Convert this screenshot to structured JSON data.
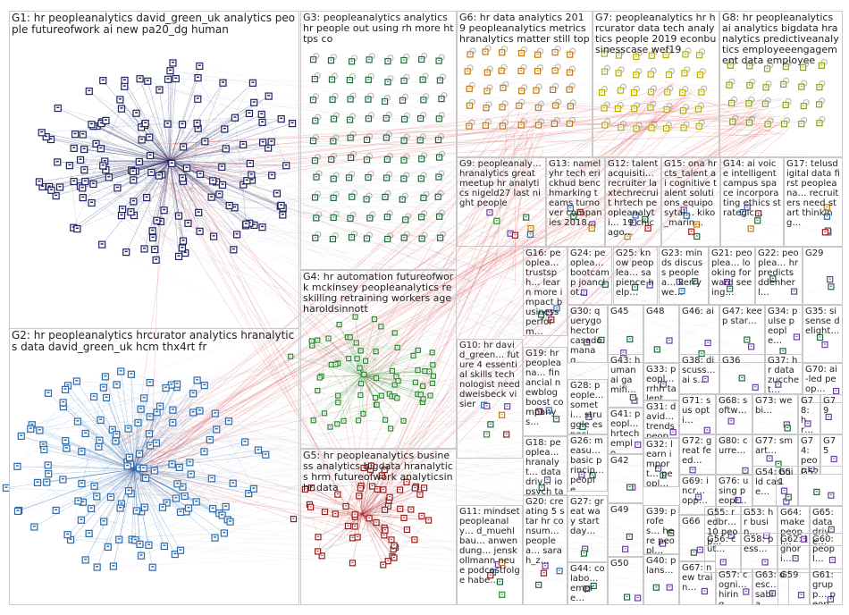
{
  "groups": [
    {
      "id": "G1",
      "label": "G1: hr peopleanalytics david_green_uk analytics people futureofwork ai new pa20_dg human",
      "color": "#1f2462"
    },
    {
      "id": "G2",
      "label": "G2: hr peopleanalytics hrcurator analytics hranalytics data david_green_uk hcm thx4rt fr",
      "color": "#2b6cb0"
    },
    {
      "id": "G3",
      "label": "G3: peopleanalytics analytics hr people out using rh more https co",
      "color": "#1e6b3a"
    },
    {
      "id": "G4",
      "label": "G4: hr automation futureofwork mckinsey peopleanalytics reskilling retraining workers age haroldsinnott",
      "color": "#2e8b2e"
    },
    {
      "id": "G5",
      "label": "G5: hr peopleanalytics business analytics bigdata hranalytics hrm futureofwork analyticsinhr data",
      "color": "#9e1b1b"
    },
    {
      "id": "G6",
      "label": "G6: hr data analytics 2019 peopleanalytics metrics hranalytics matter still top",
      "color": "#c07a12"
    },
    {
      "id": "G7",
      "label": "G7: peopleanalytics hr hrcurator data tech analytics people 2019 econbusinesscase wef19",
      "color": "#b8b000"
    },
    {
      "id": "G8",
      "label": "G8: hr peopleanalytics ai analytics bigdata hranalytics predictiveanalytics employeeengagement data employee",
      "color": "#8aa31a"
    },
    {
      "id": "G9",
      "label": "G9: peopleanaly… hranalytics great meetup hr analytics nigeld27 last night people",
      "color": "#6b3fa0"
    },
    {
      "id": "G10",
      "label": "G10: hr david_green… future 4 essential skills technologist need dweisbeck visier",
      "color": "#555555"
    },
    {
      "id": "G11",
      "label": "G11: mindset peopleanaly… d_muehlbau… anwendung… jenskollmann neue podcastfolge habe…",
      "color": "#555555"
    },
    {
      "id": "G12",
      "label": "G12: talentacquisiti… recruiter laxtechrecruit hrtech peopleanalyti… 19 chicago…",
      "color": "#555555"
    },
    {
      "id": "G13",
      "label": "G13: namelyhr tech erickhud benchmarking teams turnover companies 2018…",
      "color": "#555555"
    },
    {
      "id": "G14",
      "label": "G14: ai voice intelligent campus space incorporating ethics strategic…",
      "color": "#555555"
    },
    {
      "id": "G15",
      "label": "G15: ona hr cts_talent ai cognitive talent solutions equiposytal… kiko_marin…",
      "color": "#555555"
    },
    {
      "id": "G16",
      "label": "G16: peoplea… trustsph… learn more impact business perform…",
      "color": "#555555"
    },
    {
      "id": "G17",
      "label": "G17: telusdigital data first peopleana… recruiters need start thinking…",
      "color": "#555555"
    },
    {
      "id": "G18",
      "label": "G18: peoplea… hranalyt… datadriv… iopsych talent_… data…",
      "color": "#555555"
    },
    {
      "id": "G19",
      "label": "G19: hr peopleana… financial newblog boost company s…",
      "color": "#555555"
    },
    {
      "id": "G20",
      "label": "G20: creating 5 star hr consum… peoplea… sarah_z…",
      "color": "#555555"
    },
    {
      "id": "G21",
      "label": "G21: peoplea… looking forward seeing…",
      "color": "#555555"
    },
    {
      "id": "G22",
      "label": "G22: peoplea… hr predicts ddenherl…",
      "color": "#555555"
    },
    {
      "id": "G23",
      "label": "G23: minds discuss peoplea… kerrywe…",
      "color": "#555555"
    },
    {
      "id": "G24",
      "label": "G24: peoplea… bootcamp joanclot…",
      "color": "#555555"
    },
    {
      "id": "G25",
      "label": "G25: know peoplea… sapience help…",
      "color": "#555555"
    },
    {
      "id": "G26",
      "label": "G26: measu… basic princip… people…",
      "color": "#555555"
    },
    {
      "id": "G27",
      "label": "G27: great way start day…",
      "color": "#555555"
    },
    {
      "id": "G28",
      "label": "G28: people… someti… struggle especi…",
      "color": "#555555"
    },
    {
      "id": "G29",
      "label": "G29",
      "color": "#555555"
    },
    {
      "id": "G30",
      "label": "G30: querygo hector casado manag…",
      "color": "#555555"
    },
    {
      "id": "G31",
      "label": "G31: david… trends peopl…",
      "color": "#555555"
    },
    {
      "id": "G32",
      "label": "G32: learn import… peopl…",
      "color": "#555555"
    },
    {
      "id": "G33",
      "label": "G33: peopl… rrhh talent…",
      "color": "#555555"
    },
    {
      "id": "G34",
      "label": "G34: pulse people…",
      "color": "#555555"
    },
    {
      "id": "G35",
      "label": "G35: sisense delight…",
      "color": "#555555"
    },
    {
      "id": "G36",
      "label": "G36",
      "color": "#555555"
    },
    {
      "id": "G37",
      "label": "G37: hr data zucchet…",
      "color": "#555555"
    },
    {
      "id": "G38",
      "label": "G38: discuss… ai s…",
      "color": "#555555"
    },
    {
      "id": "G39",
      "label": "G39: profes… here peopl…",
      "color": "#555555"
    },
    {
      "id": "G40",
      "label": "G40: plans…",
      "color": "#555555"
    },
    {
      "id": "G41",
      "label": "G41: peopl… hrtech emplo…",
      "color": "#555555"
    },
    {
      "id": "G42",
      "label": "G42",
      "color": "#555555"
    },
    {
      "id": "G43",
      "label": "G43: human ai gamifi…",
      "color": "#555555"
    },
    {
      "id": "G44",
      "label": "G44: colabo… empre…",
      "color": "#555555"
    },
    {
      "id": "G45",
      "label": "G45",
      "color": "#555555"
    },
    {
      "id": "G46",
      "label": "G46: ai",
      "color": "#555555"
    },
    {
      "id": "G47",
      "label": "G47: keep star…",
      "color": "#555555"
    },
    {
      "id": "G48",
      "label": "G48",
      "color": "#555555"
    },
    {
      "id": "G49",
      "label": "G49",
      "color": "#555555"
    },
    {
      "id": "G50",
      "label": "G50",
      "color": "#555555"
    },
    {
      "id": "G51",
      "label": "G51",
      "color": "#555555"
    },
    {
      "id": "G52",
      "label": "G52",
      "color": "#555555"
    },
    {
      "id": "G53",
      "label": "G53: hr busin…",
      "color": "#555555"
    },
    {
      "id": "G54",
      "label": "G54: build case…",
      "color": "#555555"
    },
    {
      "id": "G55",
      "label": "G55: redbr… 10 peop…",
      "color": "#555555"
    },
    {
      "id": "G56",
      "label": "G56: cut…",
      "color": "#555555"
    },
    {
      "id": "G57",
      "label": "G57: cogni… hiring…",
      "color": "#555555"
    },
    {
      "id": "G58",
      "label": "G58: pess…",
      "color": "#555555"
    },
    {
      "id": "G59",
      "label": "G59",
      "color": "#555555"
    },
    {
      "id": "G60",
      "label": "G60: peopl…",
      "color": "#555555"
    },
    {
      "id": "G61",
      "label": "G61: grupp… peopl…",
      "color": "#555555"
    },
    {
      "id": "G62",
      "label": "G62: ignori…",
      "color": "#555555"
    },
    {
      "id": "G63",
      "label": "G63: desc… sabia…",
      "color": "#555555"
    },
    {
      "id": "G64",
      "label": "G64: make peopl…",
      "color": "#555555"
    },
    {
      "id": "G65",
      "label": "G65: data drive…",
      "color": "#555555"
    },
    {
      "id": "G66",
      "label": "G66",
      "color": "#555555"
    },
    {
      "id": "G67",
      "label": "G67: new train…",
      "color": "#555555"
    },
    {
      "id": "G68",
      "label": "G68: softw…",
      "color": "#555555"
    },
    {
      "id": "G69",
      "label": "G69: incr… opp…",
      "color": "#555555"
    },
    {
      "id": "G70",
      "label": "G70: ai-led peop…",
      "color": "#555555"
    },
    {
      "id": "G71",
      "label": "G71: sus opti…",
      "color": "#555555"
    },
    {
      "id": "G72",
      "label": "G72: great feed…",
      "color": "#555555"
    },
    {
      "id": "G73",
      "label": "G73: webi…",
      "color": "#555555"
    },
    {
      "id": "G74",
      "label": "G74: peopl…",
      "color": "#555555"
    },
    {
      "id": "G75",
      "label": "G75",
      "color": "#555555"
    },
    {
      "id": "G76",
      "label": "G76: using peopl…",
      "color": "#555555"
    },
    {
      "id": "G77",
      "label": "G77: smart…",
      "color": "#555555"
    },
    {
      "id": "G78",
      "label": "G78: hr…",
      "color": "#555555"
    },
    {
      "id": "G79",
      "label": "G79",
      "color": "#555555"
    },
    {
      "id": "G80",
      "label": "G80: curre…",
      "color": "#555555"
    }
  ]
}
